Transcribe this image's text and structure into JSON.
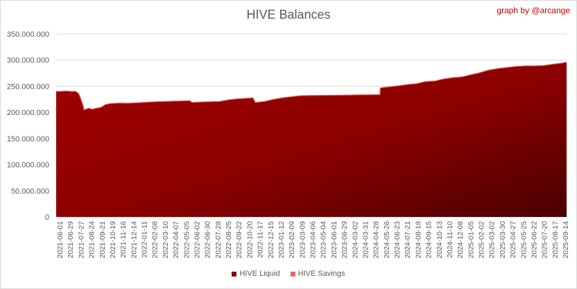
{
  "chart_data": {
    "type": "area",
    "title": "HIVE Balances",
    "credit": "graph by @arcange",
    "ylim": [
      0,
      350000000
    ],
    "yticks": [
      0,
      50000000,
      100000000,
      150000000,
      200000000,
      250000000,
      300000000,
      350000000
    ],
    "ytick_labels": [
      "0",
      "50.000.000",
      "100.000.000",
      "150.000.000",
      "200.000.000",
      "250.000.000",
      "300.000.000",
      "350.000.000"
    ],
    "grid": "horizontal",
    "legend_position": "bottom",
    "x_start": "2021-06-01",
    "x_end": "2025-10-01",
    "x_tick_labels": [
      "2021-06-01",
      "2021-06-29",
      "2021-07-27",
      "2021-08-24",
      "2021-09-21",
      "2021-10-19",
      "2021-11-16",
      "2021-12-14",
      "2022-01-11",
      "2022-02-08",
      "2022-03-10",
      "2022-04-07",
      "2022-05-05",
      "2022-06-02",
      "2022-06-30",
      "2022-07-28",
      "2022-08-25",
      "2022-09-22",
      "2022-10-20",
      "2022-11-17",
      "2022-12-15",
      "2023-01-12",
      "2023-02-09",
      "2023-03-09",
      "2023-04-06",
      "2023-05-04",
      "2023-06-01",
      "2023-06-29",
      "2024-03-02",
      "2024-03-31",
      "2024-04-28",
      "2024-05-26",
      "2024-06-23",
      "2024-07-21",
      "2024-08-18",
      "2024-09-15",
      "2024-10-13",
      "2024-11-10",
      "2024-12-08",
      "2025-01-05",
      "2025-02-02",
      "2025-03-02",
      "2025-03-30",
      "2025-04-27",
      "2025-05-25",
      "2025-06-22",
      "2025-07-20",
      "2025-08-17",
      "2025-09-14"
    ],
    "series": [
      {
        "name": "HIVE Liquid",
        "color": "#7f0000",
        "x": [
          "2021-06-01",
          "2021-06-05",
          "2021-06-20",
          "2021-06-29",
          "2021-07-20",
          "2021-07-27",
          "2021-08-01",
          "2021-08-10",
          "2021-08-15",
          "2021-08-24",
          "2021-08-26",
          "2021-09-10",
          "2021-09-21",
          "2021-10-19",
          "2021-11-01",
          "2021-11-16",
          "2021-12-14",
          "2022-01-11",
          "2022-02-08",
          "2022-03-10",
          "2022-04-07",
          "2022-05-05",
          "2022-06-02",
          "2022-06-30",
          "2022-07-20",
          "2022-07-28",
          "2022-08-25",
          "2022-09-22",
          "2022-10-20",
          "2022-11-17",
          "2022-12-15",
          "2023-01-12",
          "2023-02-01",
          "2023-02-09",
          "2023-03-09",
          "2023-04-06",
          "2023-05-04",
          "2023-06-01",
          "2023-06-29",
          "2024-03-01",
          "2024-03-02",
          "2024-03-31",
          "2024-04-28",
          "2024-05-26",
          "2024-06-23",
          "2024-07-21",
          "2024-08-18",
          "2024-09-15",
          "2024-10-13",
          "2024-11-10",
          "2024-12-08",
          "2025-01-05",
          "2025-02-02",
          "2025-03-02",
          "2025-03-30",
          "2025-04-27",
          "2025-05-25",
          "2025-06-22",
          "2025-07-20",
          "2025-08-17",
          "2025-09-14",
          "2025-10-01"
        ],
        "y": [
          241000000,
          240000000,
          240500000,
          241000000,
          240000000,
          240500000,
          240000000,
          236000000,
          228000000,
          212000000,
          205000000,
          208000000,
          206000000,
          210000000,
          215000000,
          217000000,
          218000000,
          217500000,
          218500000,
          219500000,
          220500000,
          221000000,
          221500000,
          222000000,
          222500000,
          219000000,
          220000000,
          220500000,
          221000000,
          224000000,
          226000000,
          227000000,
          228000000,
          219000000,
          221000000,
          225000000,
          228000000,
          230000000,
          232000000,
          234000000,
          247000000,
          249000000,
          251000000,
          253500000,
          255000000,
          259000000,
          260000000,
          264000000,
          266500000,
          268000000,
          272000000,
          276000000,
          281000000,
          284000000,
          286000000,
          288000000,
          289000000,
          289000000,
          289500000,
          292000000,
          294000000,
          296000000
        ]
      },
      {
        "name": "HIVE Savings",
        "color": "#e06666",
        "x": [
          "2021-06-01",
          "2023-02-01",
          "2024-03-02",
          "2025-10-01"
        ],
        "y": [
          1000000,
          1000000,
          1500000,
          1500000
        ]
      }
    ]
  }
}
